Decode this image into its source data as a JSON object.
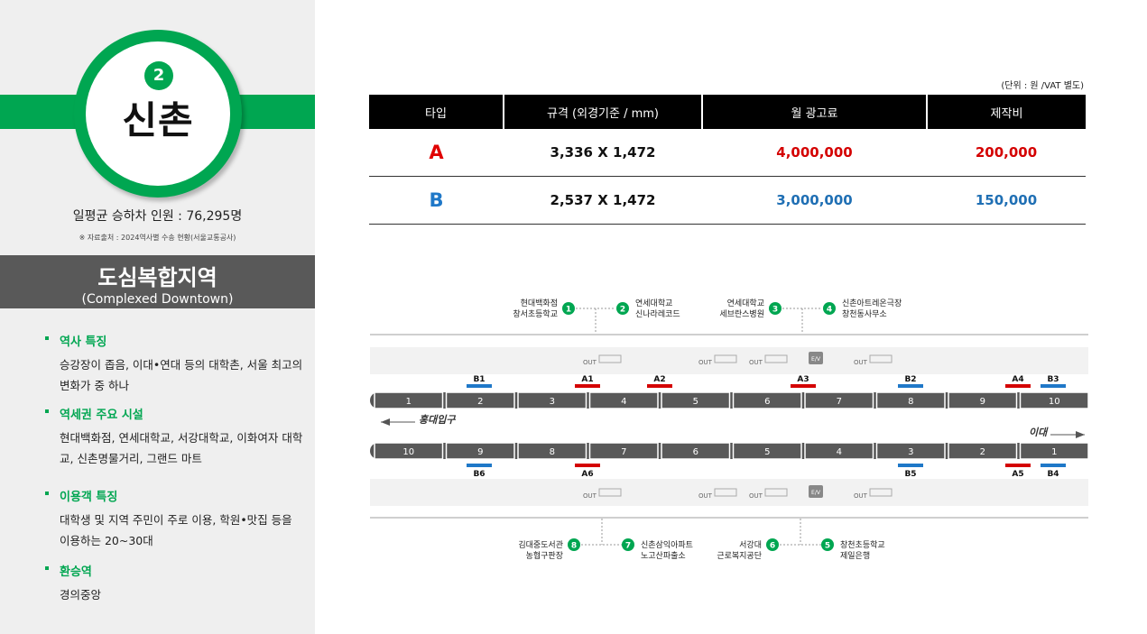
{
  "station": {
    "number": "2",
    "name": "신촌",
    "ridership": "일평균 승하차 인원 : 76,295명",
    "source": "※ 자료출처 : 2024역사별 수송 현황(서울교통공사)"
  },
  "category": {
    "title": "도심복합지역",
    "subtitle": "(Complexed Downtown)"
  },
  "sections": [
    {
      "title": "역사 특징",
      "body": "승강장이 좁음, 이대•연대 등의 대학촌, 서울 최고의 변화가 중 하나"
    },
    {
      "title": "역세권 주요 시설",
      "body": "현대백화점, 연세대학교, 서강대학교, 이화여자 대학교, 신촌명물거리, 그랜드 마트"
    },
    {
      "title": "이용객 특징",
      "body": "대학생 및 지역 주민이 주로 이용, 학원•맛집 등을 이용하는 20~30대"
    },
    {
      "title": "환승역",
      "body": "경의중앙"
    }
  ],
  "pricing": {
    "unit_note": "(단위 : 원 /VAT 별도)",
    "headers": [
      "타입",
      "규격 (외경기준 / mm)",
      "월 광고료",
      "제작비"
    ],
    "rows": [
      {
        "type": "A",
        "size": "3,336 X 1,472",
        "monthly": "4,000,000",
        "production": "200,000"
      },
      {
        "type": "B",
        "size": "2,537 X 1,472",
        "monthly": "3,000,000",
        "production": "150,000"
      }
    ]
  },
  "map": {
    "exits_top": [
      {
        "no": "1",
        "label1": "현대백화점",
        "label2": "창서초등학교"
      },
      {
        "no": "2",
        "label1": "연세대학교",
        "label2": "신나라레코드"
      },
      {
        "no": "3",
        "label1": "연세대학교",
        "label2": "세브란스병원"
      },
      {
        "no": "4",
        "label1": "신촌아트레온극장",
        "label2": "창천동사무소"
      }
    ],
    "exits_bottom": [
      {
        "no": "8",
        "label1": "김대중도서관",
        "label2": "농협구판장"
      },
      {
        "no": "7",
        "label1": "신촌삼익아파트",
        "label2": "노고산파출소"
      },
      {
        "no": "6",
        "label1": "서강대",
        "label2": "근로복지공단"
      },
      {
        "no": "5",
        "label1": "창천초등학교",
        "label2": "제일은행"
      }
    ],
    "direction_left": "홍대입구",
    "direction_right": "이대",
    "out_label": "OUT",
    "ev_label": "E/V",
    "top_track_cars": [
      "1",
      "2",
      "3",
      "4",
      "5",
      "6",
      "7",
      "8",
      "9",
      "10"
    ],
    "bottom_track_cars": [
      "10",
      "9",
      "8",
      "7",
      "6",
      "5",
      "4",
      "3",
      "2",
      "1"
    ],
    "top_ads": [
      {
        "label": "B1",
        "color": "#1f78c8"
      },
      {
        "label": "A1",
        "color": "#d40000"
      },
      {
        "label": "A2",
        "color": "#d40000"
      },
      {
        "label": "A3",
        "color": "#d40000"
      },
      {
        "label": "B2",
        "color": "#1f78c8"
      },
      {
        "label": "A4",
        "color": "#d40000"
      },
      {
        "label": "B3",
        "color": "#1f78c8"
      }
    ],
    "bottom_ads": [
      {
        "label": "B6",
        "color": "#1f78c8"
      },
      {
        "label": "A6",
        "color": "#d40000"
      },
      {
        "label": "B5",
        "color": "#1f78c8"
      },
      {
        "label": "A5",
        "color": "#d40000"
      },
      {
        "label": "B4",
        "color": "#1f78c8"
      }
    ]
  },
  "colors": {
    "green": "#00a651",
    "red": "#d40000",
    "blue": "#1f78c8",
    "dark": "#595959"
  }
}
